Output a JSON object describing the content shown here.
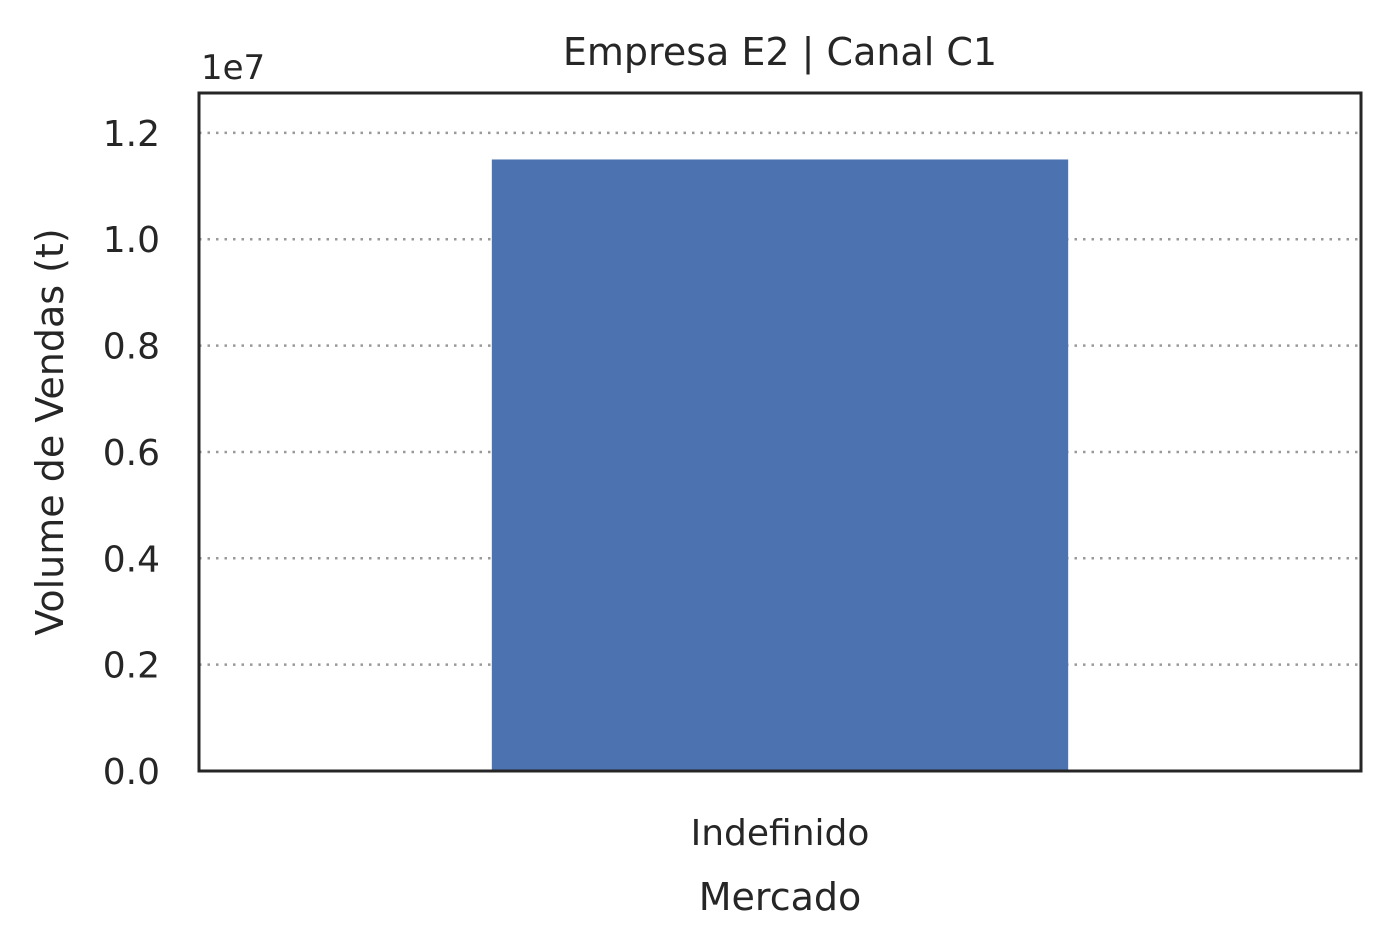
{
  "chart_data": {
    "type": "bar",
    "title": "Empresa E2 | Canal C1",
    "xlabel": "Mercado",
    "ylabel": "Volume de Vendas (t)",
    "categories": [
      "Indefinido"
    ],
    "series": [
      {
        "values": [
          11500000
        ]
      }
    ],
    "ylim": [
      0,
      12750000
    ],
    "yticks": [
      0,
      2000000,
      4000000,
      6000000,
      8000000,
      10000000,
      12000000
    ],
    "ytick_labels": [
      "0.0",
      "0.2",
      "0.4",
      "0.6",
      "0.8",
      "1.0",
      "1.2"
    ],
    "offset_label": "1e7",
    "grid": "y-dotted",
    "legend": "none",
    "colors": {
      "bar": "#4c72b0",
      "grid": "#999999",
      "frame": "#262626"
    }
  }
}
